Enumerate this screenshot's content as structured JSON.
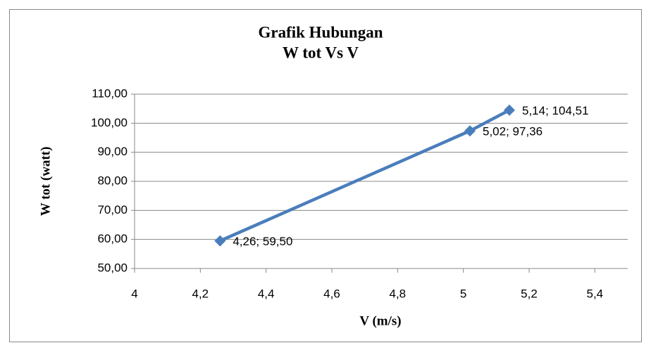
{
  "chart_data": {
    "type": "line",
    "title": [
      "Grafik Hubungan",
      "W tot   Vs   V"
    ],
    "xlabel": "V  (m/s)",
    "ylabel": "W tot  (watt)",
    "x": [
      4.26,
      5.02,
      5.14
    ],
    "series": [
      {
        "name": "W tot",
        "color": "#4a7ebb",
        "values": [
          59.5,
          97.36,
          104.51
        ],
        "value_labels": [
          "4,26;  59,50",
          "5,02;  97,36",
          "5,14;  104,51"
        ]
      }
    ],
    "xlim": [
      4,
      5.5
    ],
    "xticks": [
      4,
      {
        "value": 4.2,
        "label": "4,2"
      },
      {
        "value": 4.4,
        "label": "4,4"
      },
      {
        "value": 4.6,
        "label": "4,6"
      },
      {
        "value": 4.8,
        "label": "4,8"
      },
      5,
      {
        "value": 5.2,
        "label": "5,2"
      },
      {
        "value": 5.4,
        "label": "5,4"
      }
    ],
    "ylim": [
      50,
      110
    ],
    "yticks": [
      {
        "value": 50,
        "label": "50,00"
      },
      {
        "value": 60,
        "label": "60,00"
      },
      {
        "value": 70,
        "label": "70,00"
      },
      {
        "value": 80,
        "label": "80,00"
      },
      {
        "value": 90,
        "label": "90,00"
      },
      {
        "value": 100,
        "label": "100,00"
      },
      {
        "value": 110,
        "label": "110,00"
      }
    ],
    "grid": true
  }
}
